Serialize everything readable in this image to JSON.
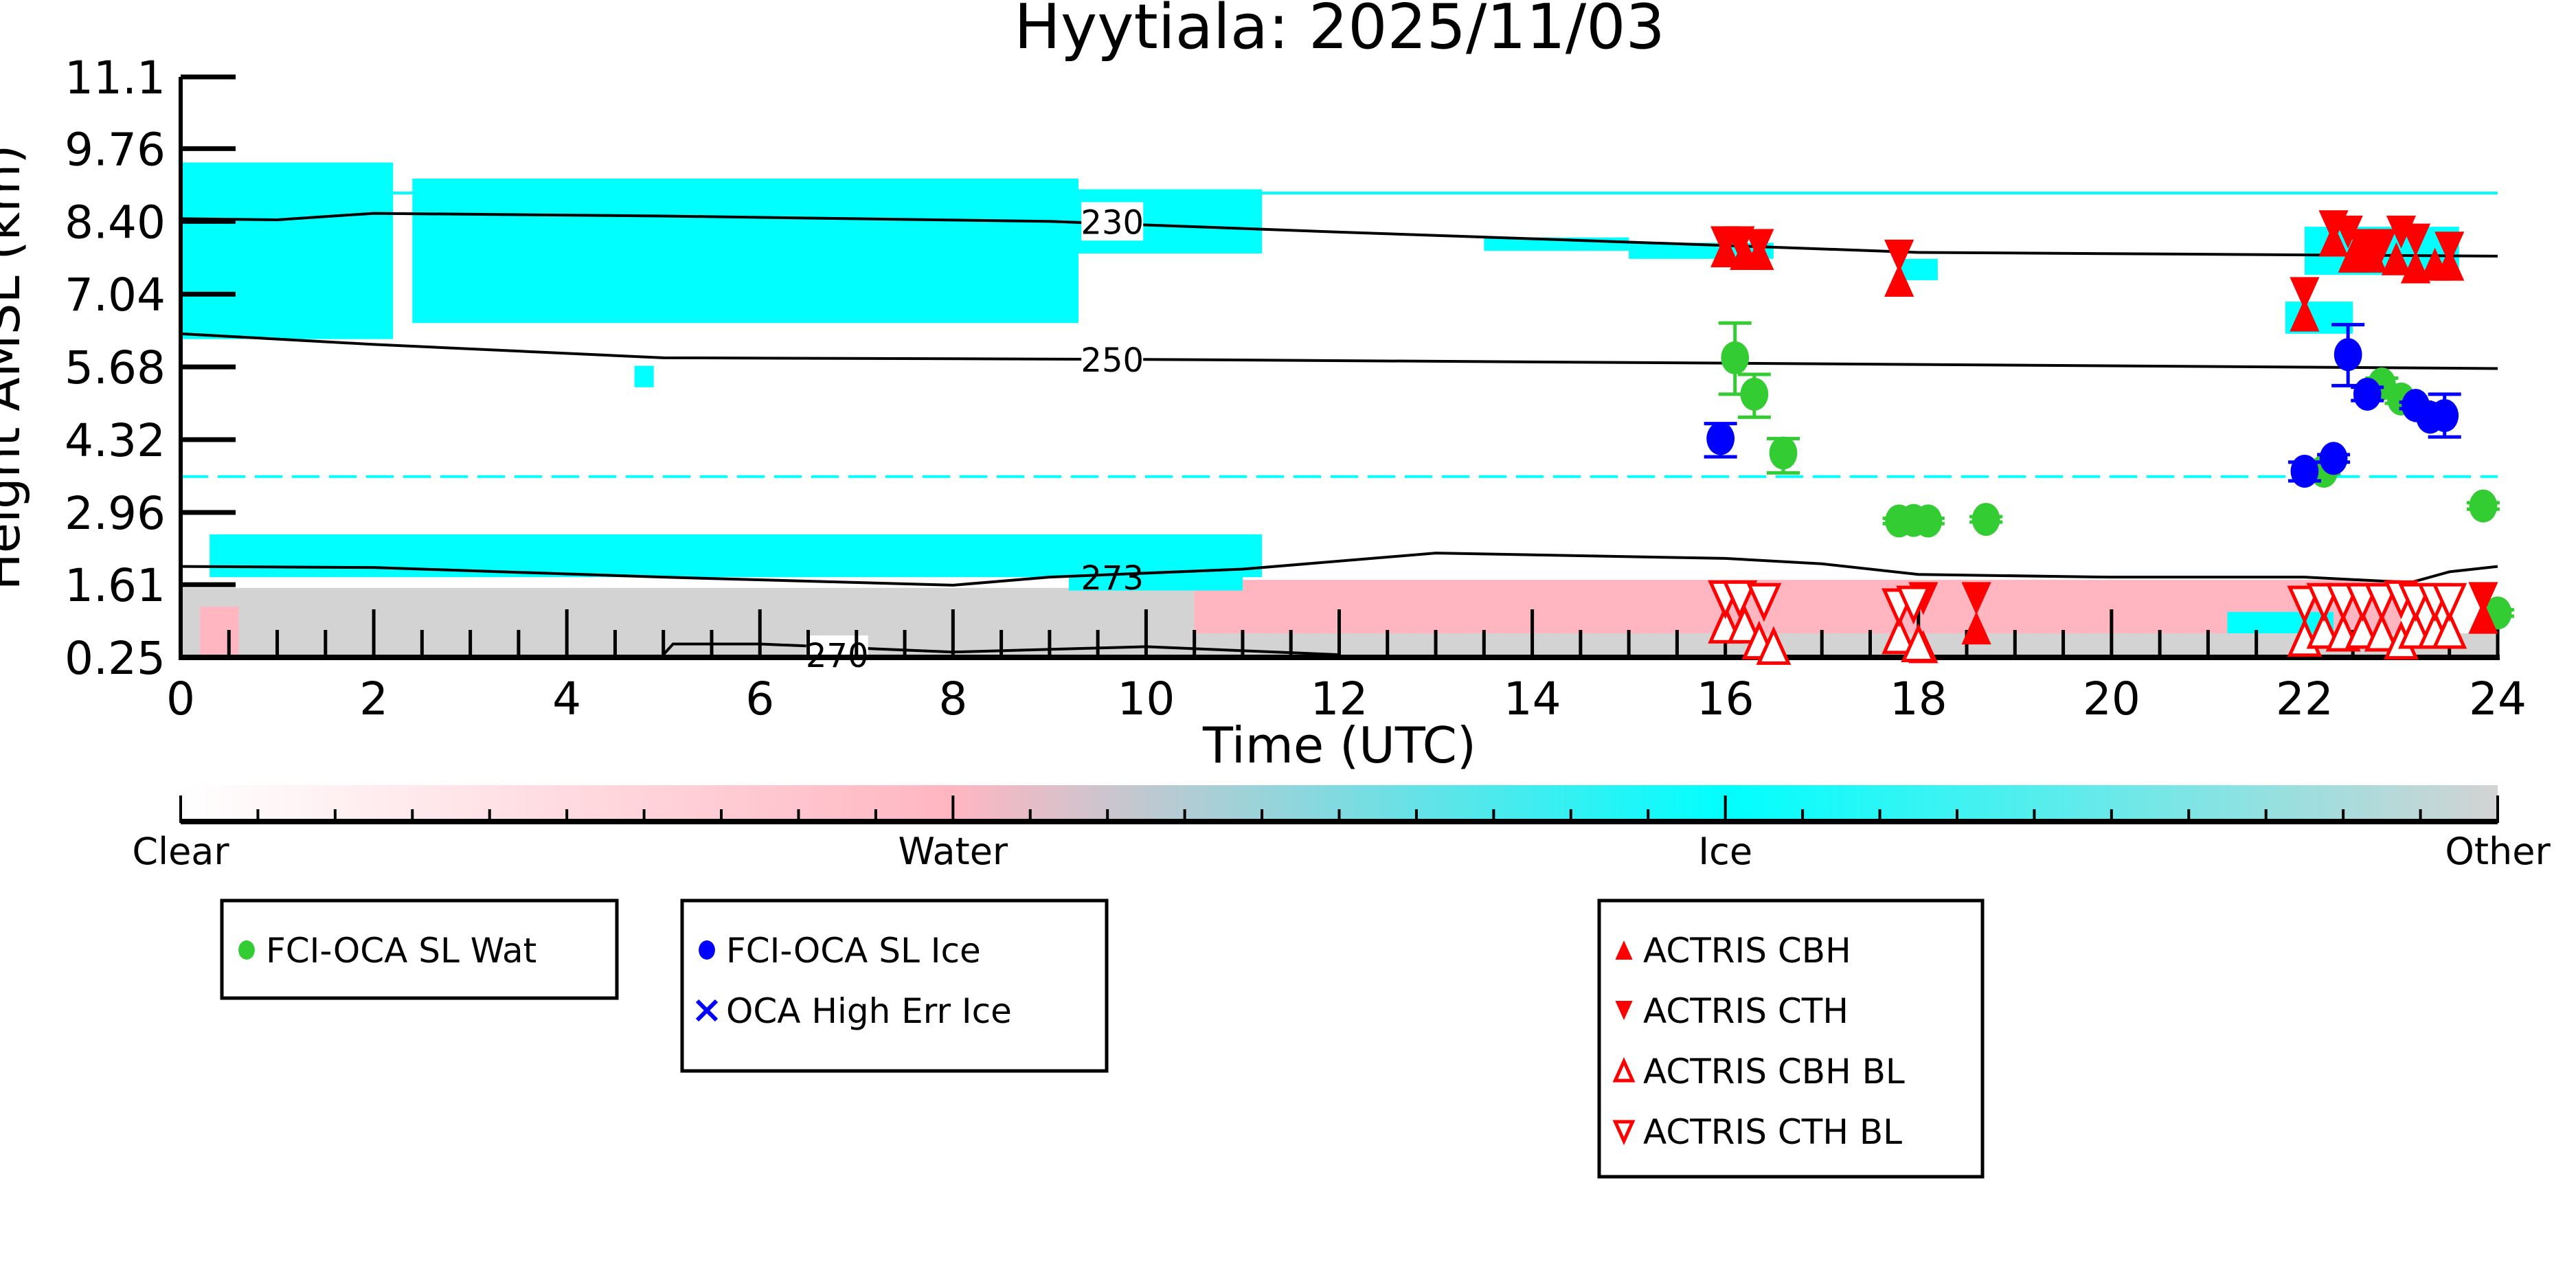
{
  "chart_data": {
    "type": "scatter",
    "title": "Hyytiala: 2025/11/03",
    "xlabel": "Time (UTC)",
    "ylabel": "Height AMSL (km)",
    "xlim": [
      0,
      24
    ],
    "ylim": [
      0.25,
      11.1
    ],
    "xticks": [
      "0",
      "2",
      "4",
      "6",
      "8",
      "10",
      "12",
      "14",
      "16",
      "18",
      "20",
      "22",
      "24"
    ],
    "xtick_values": [
      0,
      2,
      4,
      6,
      8,
      10,
      12,
      14,
      16,
      18,
      20,
      22,
      24
    ],
    "yticks": [
      "0.25",
      "1.61",
      "2.96",
      "4.32",
      "5.68",
      "7.04",
      "8.40",
      "9.76",
      "11.1"
    ],
    "ytick_values": [
      0.25,
      1.61,
      2.96,
      4.32,
      5.68,
      7.04,
      8.4,
      9.76,
      11.1
    ],
    "phase_colors": {
      "clear": "#ffffff",
      "water": "#ffb6c1",
      "ice": "#00ffff",
      "other": "#d3d3d3"
    },
    "cloud_phase_regions": [
      [
        0,
        12,
        0.25,
        1.55,
        "other"
      ],
      [
        12,
        24,
        0.25,
        0.7,
        "other"
      ],
      [
        10.5,
        23,
        0.7,
        1.7,
        "water"
      ],
      [
        0.2,
        0.6,
        0.3,
        1.2,
        "water"
      ],
      [
        0.3,
        11.2,
        1.75,
        2.55,
        "ice"
      ],
      [
        9.2,
        11,
        1.5,
        1.9,
        "ice"
      ],
      [
        21.2,
        22.3,
        0.7,
        1.1,
        "ice"
      ],
      [
        0,
        2.2,
        6.2,
        9.5,
        "ice"
      ],
      [
        2.4,
        9.3,
        6.5,
        9.2,
        "ice"
      ],
      [
        9.3,
        11.2,
        7.8,
        9.0,
        "ice"
      ],
      [
        4.7,
        4.9,
        5.3,
        5.7,
        "ice"
      ],
      [
        13.5,
        15.0,
        7.85,
        8.1,
        "ice"
      ],
      [
        15.0,
        16.5,
        7.7,
        8.0,
        "ice"
      ],
      [
        17.8,
        18.2,
        7.3,
        7.7,
        "ice"
      ],
      [
        22.0,
        23.6,
        7.4,
        8.3,
        "ice"
      ],
      [
        21.8,
        22.5,
        6.3,
        6.9,
        "ice"
      ]
    ],
    "reference_lines": [
      {
        "height": 8.93,
        "color": "#00ffff",
        "style": "solid"
      },
      {
        "height": 3.63,
        "color": "#00ffff",
        "style": "dashed"
      }
    ],
    "temperature_contours": [
      {
        "label": "230",
        "points": [
          [
            0,
            8.45
          ],
          [
            1,
            8.43
          ],
          [
            2,
            8.55
          ],
          [
            5,
            8.5
          ],
          [
            9,
            8.4
          ],
          [
            12,
            8.2
          ],
          [
            16,
            7.95
          ],
          [
            18,
            7.82
          ],
          [
            24,
            7.75
          ]
        ]
      },
      {
        "label": "250",
        "points": [
          [
            0,
            6.3
          ],
          [
            2,
            6.1
          ],
          [
            5,
            5.85
          ],
          [
            10,
            5.82
          ],
          [
            16,
            5.75
          ],
          [
            24,
            5.65
          ]
        ]
      },
      {
        "label": "273",
        "points": [
          [
            0,
            1.95
          ],
          [
            2,
            1.93
          ],
          [
            5,
            1.75
          ],
          [
            8,
            1.6
          ],
          [
            9,
            1.75
          ],
          [
            11,
            1.9
          ],
          [
            13,
            2.2
          ],
          [
            16,
            2.1
          ],
          [
            17,
            2.0
          ],
          [
            18,
            1.8
          ],
          [
            20,
            1.75
          ],
          [
            22,
            1.75
          ],
          [
            23.1,
            1.65
          ],
          [
            23.5,
            1.85
          ],
          [
            24,
            1.95
          ]
        ]
      },
      {
        "label": "270",
        "points": [
          [
            5,
            0.3
          ],
          [
            5.1,
            0.5
          ],
          [
            6,
            0.5
          ],
          [
            8,
            0.35
          ],
          [
            10,
            0.45
          ],
          [
            12,
            0.3
          ]
        ]
      }
    ],
    "series": [
      {
        "name": "FCI-OCA SL Wat",
        "color": "#33cc33",
        "marker": "circle",
        "points": [
          [
            16.1,
            5.85,
            5.17,
            6.5
          ],
          [
            16.3,
            5.17,
            4.74,
            5.54
          ],
          [
            16.6,
            4.07,
            3.7,
            4.34
          ],
          [
            17.8,
            2.8,
            2.75,
            2.85
          ],
          [
            17.95,
            2.81,
            2.76,
            2.86
          ],
          [
            18.1,
            2.8,
            2.75,
            2.85
          ],
          [
            18.7,
            2.83,
            2.78,
            2.88
          ],
          [
            22.2,
            3.73,
            3.68,
            3.78
          ],
          [
            22.8,
            5.36,
            5.25,
            5.47
          ],
          [
            23.0,
            5.08,
            5.0,
            5.15
          ],
          [
            23.85,
            3.08,
            3.02,
            3.14
          ],
          [
            24.0,
            1.08,
            1.02,
            1.14
          ]
        ]
      },
      {
        "name": "FCI-OCA SL Ice",
        "color": "#0000ff",
        "marker": "circle",
        "points": [
          [
            15.95,
            4.34,
            4.0,
            4.62
          ],
          [
            22.0,
            3.73,
            3.55,
            3.9
          ],
          [
            22.3,
            3.97,
            3.9,
            4.04
          ],
          [
            22.45,
            5.91,
            5.33,
            6.47
          ],
          [
            22.65,
            5.17,
            5.05,
            5.3
          ],
          [
            23.15,
            4.96,
            4.9,
            5.02
          ],
          [
            23.3,
            4.74,
            4.68,
            4.8
          ],
          [
            23.45,
            4.77,
            4.37,
            5.17
          ]
        ]
      },
      {
        "name": "OCA High Err Ice",
        "color": "#0000ff",
        "marker": "x",
        "points": []
      },
      {
        "name": "ACTRIS CBH",
        "color": "#ff0000",
        "marker": "triangle-up",
        "points": [
          [
            16.0,
            7.85
          ],
          [
            16.2,
            7.8
          ],
          [
            16.35,
            7.8
          ],
          [
            17.8,
            7.3
          ],
          [
            22.0,
            6.65
          ],
          [
            22.3,
            8.05
          ],
          [
            22.5,
            7.75
          ],
          [
            22.7,
            7.75
          ],
          [
            22.95,
            7.7
          ],
          [
            23.15,
            7.55
          ],
          [
            23.35,
            7.6
          ],
          [
            23.5,
            7.6
          ],
          [
            18.05,
            0.45
          ],
          [
            18.6,
            0.8
          ],
          [
            23.85,
            1.0
          ]
        ]
      },
      {
        "name": "ACTRIS CTH",
        "color": "#ff0000",
        "marker": "triangle-down",
        "points": [
          [
            16.0,
            8.0
          ],
          [
            16.15,
            8.0
          ],
          [
            16.35,
            7.95
          ],
          [
            17.8,
            7.75
          ],
          [
            22.0,
            7.05
          ],
          [
            22.3,
            8.3
          ],
          [
            22.45,
            8.2
          ],
          [
            22.6,
            7.95
          ],
          [
            22.8,
            7.95
          ],
          [
            23.0,
            8.2
          ],
          [
            23.15,
            8.05
          ],
          [
            23.5,
            7.9
          ],
          [
            18.05,
            1.35
          ],
          [
            18.6,
            1.35
          ],
          [
            23.85,
            1.35
          ]
        ]
      },
      {
        "name": "ACTRIS CBH BL",
        "color": "#ff0000",
        "marker": "triangle-up-open",
        "points": [
          [
            16.0,
            0.85
          ],
          [
            16.2,
            0.85
          ],
          [
            16.35,
            0.55
          ],
          [
            16.5,
            0.45
          ],
          [
            17.8,
            0.65
          ],
          [
            18.0,
            0.5
          ],
          [
            22.0,
            0.6
          ],
          [
            22.2,
            0.75
          ],
          [
            22.4,
            0.7
          ],
          [
            22.6,
            0.75
          ],
          [
            22.8,
            0.7
          ],
          [
            23.0,
            0.55
          ],
          [
            23.15,
            0.75
          ],
          [
            23.35,
            0.75
          ],
          [
            23.5,
            0.75
          ]
        ]
      },
      {
        "name": "ACTRIS CTH BL",
        "color": "#ff0000",
        "marker": "triangle-down-open",
        "points": [
          [
            16.0,
            1.35
          ],
          [
            16.15,
            1.35
          ],
          [
            16.4,
            1.3
          ],
          [
            17.8,
            1.2
          ],
          [
            17.95,
            1.25
          ],
          [
            22.0,
            1.25
          ],
          [
            22.2,
            1.3
          ],
          [
            22.4,
            1.3
          ],
          [
            22.6,
            1.3
          ],
          [
            22.8,
            1.3
          ],
          [
            23.0,
            1.35
          ],
          [
            23.15,
            1.3
          ],
          [
            23.35,
            1.3
          ],
          [
            23.5,
            1.3
          ]
        ]
      }
    ],
    "colorbar": {
      "labels": [
        "Clear",
        "Water",
        "Ice",
        "Other"
      ],
      "colors": [
        "#ffffff",
        "#ffb6c1",
        "#00ffff",
        "#d3d3d3"
      ]
    },
    "legends": [
      [
        "FCI-OCA SL Wat"
      ],
      [
        "FCI-OCA SL Ice",
        "OCA High Err Ice"
      ],
      [
        "ACTRIS CBH",
        "ACTRIS CTH",
        "ACTRIS CBH BL",
        "ACTRIS CTH BL"
      ]
    ]
  }
}
